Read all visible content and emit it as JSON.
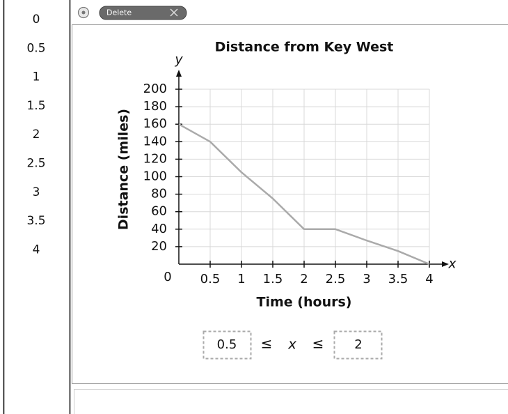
{
  "toolbar": {
    "delete": "Delete"
  },
  "tiles": [
    "0",
    "0.5",
    "1",
    "1.5",
    "2",
    "2.5",
    "3",
    "3.5",
    "4"
  ],
  "chart_data": {
    "type": "line",
    "title": "Distance from Key West",
    "x_label": "Time (hours)",
    "y_label": "Distance (miles)",
    "x_symbol": "x",
    "y_symbol": "y",
    "x": [
      0,
      0.5,
      1,
      1.5,
      2,
      2.5,
      3,
      3.5,
      4
    ],
    "series": [
      {
        "color": "#aaaaaa",
        "values": [
          160,
          140,
          105,
          75,
          40,
          40,
          27,
          15,
          0
        ]
      }
    ],
    "xlim": [
      0,
      4
    ],
    "ylim": [
      0,
      200
    ],
    "xticks": [
      0,
      0.5,
      1,
      1.5,
      2,
      2.5,
      3,
      3.5,
      4
    ],
    "yticks": [
      20,
      40,
      60,
      80,
      100,
      120,
      140,
      160,
      180,
      200
    ],
    "grid": true
  },
  "inequality": {
    "lower": "0.5",
    "symbol_left": "≤",
    "variable": "x",
    "symbol_right": "≤",
    "upper": "2"
  }
}
